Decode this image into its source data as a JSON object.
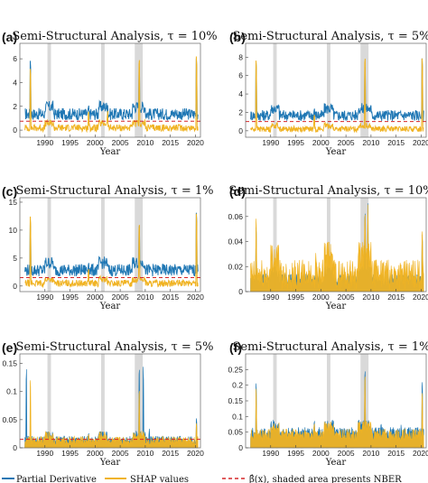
{
  "colors": {
    "blue": "#1f77b4",
    "orange": "#f0b323",
    "red": "#d62728",
    "nber": "#d9d9d9"
  },
  "legend": {
    "partial": "Partial Derivative",
    "shap": "SHAP values",
    "beta": "β̂(x), shaded area presents NBER"
  },
  "chart_data": [
    {
      "type": "line",
      "panel": "(a)",
      "title": "Semi-Structural Analysis, τ = 10%",
      "xlabel": "Year",
      "xlim": [
        1985,
        2021
      ],
      "ylim": [
        -0.6,
        7.3
      ],
      "yticks": [
        0,
        2,
        4,
        6
      ],
      "xticks": [
        1990,
        1995,
        2000,
        2005,
        2010,
        2015,
        2020
      ],
      "recessions": [
        [
          1990.5,
          1991.2
        ],
        [
          2001.2,
          2001.9
        ],
        [
          2007.9,
          2009.5
        ]
      ],
      "series": [
        {
          "name": "Partial Derivative",
          "color": "blue",
          "base": 1.2,
          "noise": 0.5,
          "spikes": [
            [
              1987.1,
              6.8
            ],
            [
              2008.8,
              6.3
            ],
            [
              2020.2,
              6.9
            ],
            [
              1998.7,
              2.4
            ],
            [
              2002.5,
              2.2
            ],
            [
              2011.6,
              1.9
            ],
            [
              2016.0,
              1.8
            ]
          ]
        },
        {
          "name": "SHAP values",
          "color": "orange",
          "base": 0.1,
          "noise": 0.3,
          "spikes": [
            [
              1987.1,
              6.0
            ],
            [
              2008.8,
              7.0
            ],
            [
              2020.2,
              7.1
            ],
            [
              1998.7,
              1.8
            ],
            [
              2002.5,
              1.7
            ]
          ]
        }
      ],
      "beta": 0.75
    },
    {
      "type": "line",
      "panel": "(b)",
      "title": "Semi-Structural Analysis, τ = 5%",
      "xlabel": "Year",
      "xlim": [
        1985,
        2021
      ],
      "ylim": [
        -0.7,
        9.5
      ],
      "yticks": [
        0,
        2,
        4,
        6,
        8
      ],
      "xticks": [
        1990,
        1995,
        2000,
        2005,
        2010,
        2015,
        2020
      ],
      "recessions": [
        [
          1990.5,
          1991.2
        ],
        [
          2001.2,
          2001.9
        ],
        [
          2007.9,
          2009.5
        ]
      ],
      "series": [
        {
          "name": "Partial Derivative",
          "color": "blue",
          "base": 1.5,
          "noise": 0.6,
          "spikes": [
            [
              1987.1,
              8.7
            ],
            [
              2008.8,
              8.2
            ],
            [
              2020.2,
              9.0
            ],
            [
              1998.7,
              2.8
            ],
            [
              2002.5,
              2.6
            ]
          ]
        },
        {
          "name": "SHAP values",
          "color": "orange",
          "base": 0.1,
          "noise": 0.3,
          "spikes": [
            [
              1987.1,
              8.9
            ],
            [
              2008.8,
              9.3
            ],
            [
              2020.2,
              9.0
            ],
            [
              1998.7,
              2.0
            ]
          ]
        }
      ],
      "beta": 1.0
    },
    {
      "type": "line",
      "panel": "(c)",
      "title": "Semi-Structural Analysis, τ = 1%",
      "xlabel": "Year",
      "xlim": [
        1985,
        2021
      ],
      "ylim": [
        -1.0,
        15.8
      ],
      "yticks": [
        0,
        5,
        10,
        15
      ],
      "xticks": [
        1990,
        1995,
        2000,
        2005,
        2010,
        2015,
        2020
      ],
      "recessions": [
        [
          1990.5,
          1991.2
        ],
        [
          2001.2,
          2001.9
        ],
        [
          2007.9,
          2009.5
        ]
      ],
      "series": [
        {
          "name": "Partial Derivative",
          "color": "blue",
          "base": 2.5,
          "noise": 1.1,
          "spikes": [
            [
              1987.1,
              13.5
            ],
            [
              2008.8,
              12.8
            ],
            [
              2020.2,
              15.0
            ],
            [
              1998.7,
              4.8
            ],
            [
              2002.5,
              4.2
            ]
          ]
        },
        {
          "name": "SHAP values",
          "color": "orange",
          "base": 0.3,
          "noise": 0.6,
          "spikes": [
            [
              1987.1,
              14.5
            ],
            [
              2008.8,
              13.0
            ],
            [
              2020.2,
              14.8
            ],
            [
              1998.7,
              3.5
            ]
          ]
        }
      ],
      "beta": 1.5
    },
    {
      "type": "area",
      "panel": "(d)",
      "title": "Semi-Structural Analysis, τ = 10%",
      "xlabel": "Year",
      "xlim": [
        1985,
        2021
      ],
      "ylim": [
        0,
        0.075
      ],
      "yticks": [
        0,
        0.02,
        0.04,
        0.06
      ],
      "xticks": [
        1990,
        1995,
        2000,
        2005,
        2010,
        2015,
        2020
      ],
      "recessions": [
        [
          1990.5,
          1991.2
        ],
        [
          2001.2,
          2001.9
        ],
        [
          2007.9,
          2009.5
        ]
      ],
      "series": [
        {
          "name": "Partial Derivative",
          "color": "blue",
          "base": 0.008,
          "noise": 0.005,
          "spikes": [
            [
              1987.1,
              0.06
            ],
            [
              2008.8,
              0.074
            ],
            [
              2020.2,
              0.052
            ],
            [
              2009.4,
              0.074
            ]
          ]
        },
        {
          "name": "SHAP values",
          "color": "orange",
          "base": 0.01,
          "noise": 0.012,
          "spikes": [
            [
              1987.1,
              0.068
            ],
            [
              2008.8,
              0.073
            ],
            [
              2009.4,
              0.073
            ],
            [
              2020.2,
              0.055
            ],
            [
              1999.0,
              0.034
            ],
            [
              2002.3,
              0.036
            ],
            [
              2012.0,
              0.03
            ]
          ]
        }
      ],
      "beta": 0.0
    },
    {
      "type": "area",
      "panel": "(e)",
      "title": "Semi-Structural Analysis, τ = 5%",
      "xlabel": "Year",
      "xlim": [
        1985,
        2021
      ],
      "ylim": [
        0,
        0.167
      ],
      "yticks": [
        0,
        0.05,
        0.1,
        0.15
      ],
      "xticks": [
        1990,
        1995,
        2000,
        2005,
        2010,
        2015,
        2020
      ],
      "recessions": [
        [
          1990.5,
          1991.2
        ],
        [
          2001.2,
          2001.9
        ],
        [
          2007.9,
          2009.5
        ]
      ],
      "series": [
        {
          "name": "Partial Derivative",
          "color": "blue",
          "base": 0.012,
          "noise": 0.007,
          "spikes": [
            [
              1986.3,
              0.16
            ],
            [
              2008.8,
              0.165
            ],
            [
              2009.6,
              0.162
            ],
            [
              2020.2,
              0.06
            ],
            [
              1998.7,
              0.03
            ],
            [
              2010.8,
              0.035
            ]
          ]
        },
        {
          "name": "SHAP values",
          "color": "orange",
          "base": 0.01,
          "noise": 0.008,
          "spikes": [
            [
              1987.1,
              0.14
            ],
            [
              2008.8,
              0.12
            ],
            [
              2020.2,
              0.05
            ],
            [
              1998.7,
              0.028
            ]
          ]
        }
      ],
      "beta": 0.015
    },
    {
      "type": "area",
      "panel": "(f)",
      "title": "Semi-Structural Analysis, τ = 1%",
      "xlabel": "Year",
      "xlim": [
        1985,
        2021
      ],
      "ylim": [
        0,
        0.3
      ],
      "yticks": [
        0,
        0.05,
        0.1,
        0.15,
        0.2,
        0.25
      ],
      "xticks": [
        1990,
        1995,
        2000,
        2005,
        2010,
        2015,
        2020
      ],
      "recessions": [
        [
          1990.5,
          1991.2
        ],
        [
          2001.2,
          2001.9
        ],
        [
          2007.9,
          2009.5
        ]
      ],
      "series": [
        {
          "name": "Partial Derivative",
          "color": "blue",
          "base": 0.04,
          "noise": 0.02,
          "spikes": [
            [
              1987.1,
              0.24
            ],
            [
              2008.8,
              0.29
            ],
            [
              2020.2,
              0.24
            ],
            [
              1998.7,
              0.1
            ],
            [
              2002.5,
              0.09
            ],
            [
              2012.0,
              0.09
            ],
            [
              2016.0,
              0.08
            ]
          ]
        },
        {
          "name": "SHAP values",
          "color": "orange",
          "base": 0.035,
          "noise": 0.02,
          "spikes": [
            [
              1987.1,
              0.22
            ],
            [
              2008.8,
              0.27
            ],
            [
              2020.2,
              0.2
            ],
            [
              1998.7,
              0.09
            ],
            [
              2002.5,
              0.08
            ]
          ]
        }
      ],
      "beta": 0.0
    }
  ]
}
